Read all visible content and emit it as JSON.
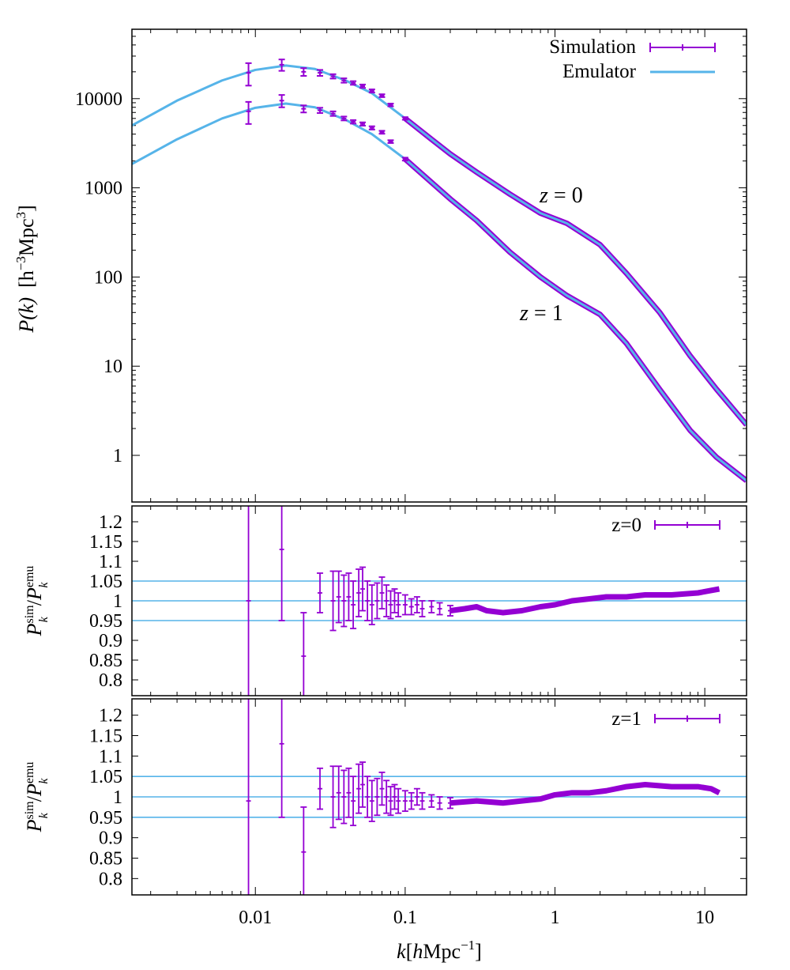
{
  "chart_data": [
    {
      "type": "line",
      "panel": "power-spectrum",
      "title": "",
      "xlabel": "k[hMpc^-1]",
      "ylabel_parts": {
        "main": "P(k)",
        "units_prefix": "[h",
        "units_exp": "−3",
        "units_mid": "Mpc",
        "units_exp2": "3",
        "units_suffix": "]"
      },
      "xscale": "log",
      "yscale": "log",
      "xlim": [
        0.0015,
        19
      ],
      "ylim": [
        0.3,
        60000
      ],
      "yticks": [
        1,
        10,
        100,
        1000,
        10000
      ],
      "ytick_labels": [
        "1",
        "10",
        "100",
        "1000",
        "10000"
      ],
      "legend": [
        {
          "label": "Simulation",
          "color": "#9400d3",
          "style": "errorbar"
        },
        {
          "label": "Emulator",
          "color": "#56b4e9",
          "style": "line"
        }
      ],
      "annotations": [
        {
          "text_parts": [
            "z",
            " = ",
            "0"
          ],
          "at_k": 1.2,
          "at_p": 650
        },
        {
          "text_parts": [
            "z",
            " = ",
            "1"
          ],
          "at_k": 0.5,
          "at_p": 32
        }
      ],
      "series": [
        {
          "name": "Emulator z=0",
          "color": "#56b4e9",
          "points": [
            [
              0.0015,
              5000
            ],
            [
              0.003,
              9500
            ],
            [
              0.006,
              16000
            ],
            [
              0.01,
              21000
            ],
            [
              0.016,
              23500
            ],
            [
              0.025,
              21500
            ],
            [
              0.04,
              16000
            ],
            [
              0.06,
              11500
            ],
            [
              0.1,
              6000
            ],
            [
              0.15,
              3500
            ],
            [
              0.2,
              2400
            ],
            [
              0.3,
              1500
            ],
            [
              0.5,
              850
            ],
            [
              0.8,
              520
            ],
            [
              1.2,
              400
            ],
            [
              2,
              230
            ],
            [
              3,
              110
            ],
            [
              5,
              40
            ],
            [
              8,
              13
            ],
            [
              12,
              5.5
            ],
            [
              19,
              2.2
            ]
          ]
        },
        {
          "name": "Emulator z=1",
          "color": "#56b4e9",
          "points": [
            [
              0.0015,
              1850
            ],
            [
              0.003,
              3500
            ],
            [
              0.006,
              6000
            ],
            [
              0.01,
              7900
            ],
            [
              0.016,
              8800
            ],
            [
              0.025,
              8000
            ],
            [
              0.04,
              5800
            ],
            [
              0.06,
              4000
            ],
            [
              0.1,
              2100
            ],
            [
              0.15,
              1150
            ],
            [
              0.2,
              750
            ],
            [
              0.3,
              430
            ],
            [
              0.5,
              190
            ],
            [
              0.8,
              100
            ],
            [
              1.2,
              62
            ],
            [
              2,
              38
            ],
            [
              3,
              18
            ],
            [
              5,
              5.5
            ],
            [
              8,
              1.9
            ],
            [
              12,
              0.95
            ],
            [
              19,
              0.52
            ]
          ]
        },
        {
          "name": "Simulation z=0",
          "color": "#9400d3",
          "points": [
            [
              0.009,
              19500,
              5500
            ],
            [
              0.015,
              24000,
              3500
            ],
            [
              0.021,
              20000,
              2000
            ],
            [
              0.027,
              19500,
              1500
            ],
            [
              0.033,
              17800,
              1000
            ],
            [
              0.039,
              16000,
              900
            ],
            [
              0.045,
              15000,
              700
            ],
            [
              0.052,
              13800,
              600
            ],
            [
              0.06,
              12200,
              500
            ],
            [
              0.07,
              10800,
              400
            ],
            [
              0.08,
              8500,
              300
            ],
            [
              0.1,
              6000,
              200
            ]
          ]
        },
        {
          "name": "Simulation z=1",
          "color": "#9400d3",
          "points": [
            [
              0.009,
              7200,
              2000
            ],
            [
              0.015,
              9500,
              1500
            ],
            [
              0.021,
              7700,
              700
            ],
            [
              0.027,
              7400,
              500
            ],
            [
              0.033,
              6800,
              400
            ],
            [
              0.039,
              6000,
              300
            ],
            [
              0.045,
              5500,
              250
            ],
            [
              0.052,
              5200,
              220
            ],
            [
              0.06,
              4700,
              200
            ],
            [
              0.07,
              4200,
              160
            ],
            [
              0.08,
              3300,
              120
            ],
            [
              0.1,
              2100,
              80
            ]
          ]
        }
      ]
    },
    {
      "type": "scatter",
      "panel": "ratio-z0",
      "legend_label": "z=0",
      "ylabel_parts": {
        "num": "P",
        "num_sup": "sim",
        "num_sub": "k",
        "den": "P",
        "den_sup": "emu",
        "den_sub": "k"
      },
      "xscale": "log",
      "xlim": [
        0.0015,
        19
      ],
      "ylim": [
        0.76,
        1.24
      ],
      "yticks": [
        0.8,
        0.85,
        0.9,
        0.95,
        1,
        1.05,
        1.1,
        1.15,
        1.2
      ],
      "ytick_labels": [
        "0.8",
        "0.85",
        "0.9",
        "0.95",
        "1",
        "1.05",
        "1.1",
        "1.15",
        "1.2"
      ],
      "hlines": [
        0.95,
        1.0,
        1.05
      ],
      "points": [
        [
          0.009,
          1.0,
          0.3
        ],
        [
          0.015,
          1.13,
          0.18
        ],
        [
          0.021,
          0.86,
          0.11
        ],
        [
          0.027,
          1.02,
          0.05
        ],
        [
          0.033,
          1.0,
          0.075
        ],
        [
          0.036,
          1.01,
          0.065
        ],
        [
          0.039,
          1.0,
          0.065
        ],
        [
          0.042,
          1.01,
          0.06
        ],
        [
          0.045,
          0.99,
          0.06
        ],
        [
          0.049,
          1.02,
          0.06
        ],
        [
          0.052,
          1.03,
          0.055
        ],
        [
          0.056,
          1.0,
          0.05
        ],
        [
          0.06,
          0.99,
          0.05
        ],
        [
          0.065,
          1.0,
          0.045
        ],
        [
          0.07,
          1.02,
          0.04
        ],
        [
          0.075,
          1.0,
          0.04
        ],
        [
          0.08,
          0.99,
          0.035
        ],
        [
          0.085,
          1.0,
          0.03
        ],
        [
          0.09,
          0.99,
          0.03
        ],
        [
          0.1,
          0.99,
          0.025
        ],
        [
          0.11,
          0.985,
          0.02
        ],
        [
          0.12,
          0.99,
          0.02
        ],
        [
          0.13,
          0.98,
          0.02
        ],
        [
          0.15,
          0.985,
          0.015
        ],
        [
          0.17,
          0.98,
          0.015
        ],
        [
          0.2,
          0.975,
          0.013
        ]
      ],
      "smooth_ratio": [
        [
          0.2,
          0.975
        ],
        [
          0.25,
          0.98
        ],
        [
          0.3,
          0.985
        ],
        [
          0.35,
          0.975
        ],
        [
          0.45,
          0.97
        ],
        [
          0.6,
          0.975
        ],
        [
          0.8,
          0.985
        ],
        [
          1.0,
          0.99
        ],
        [
          1.3,
          1.0
        ],
        [
          1.7,
          1.005
        ],
        [
          2.2,
          1.01
        ],
        [
          3.0,
          1.01
        ],
        [
          4.0,
          1.015
        ],
        [
          6.0,
          1.015
        ],
        [
          9.0,
          1.02
        ],
        [
          12.5,
          1.03
        ]
      ]
    },
    {
      "type": "scatter",
      "panel": "ratio-z1",
      "legend_label": "z=1",
      "ylabel_parts": {
        "num": "P",
        "num_sup": "sim",
        "num_sub": "k",
        "den": "P",
        "den_sup": "emu",
        "den_sub": "k"
      },
      "xscale": "log",
      "xlim": [
        0.0015,
        19
      ],
      "ylim": [
        0.76,
        1.24
      ],
      "yticks": [
        0.8,
        0.85,
        0.9,
        0.95,
        1,
        1.05,
        1.1,
        1.15,
        1.2
      ],
      "ytick_labels": [
        "0.8",
        "0.85",
        "0.9",
        "0.95",
        "1",
        "1.05",
        "1.1",
        "1.15",
        "1.2"
      ],
      "xticks": [
        0.01,
        0.1,
        1,
        10
      ],
      "xtick_labels": [
        "0.01",
        "0.1",
        "1",
        "10"
      ],
      "xlabel_parts": {
        "k": "k",
        "bracket_open": "[",
        "h": "h",
        "unit": "Mpc",
        "exp": "−1",
        "bracket_close": "]"
      },
      "hlines": [
        0.95,
        1.0,
        1.05
      ],
      "points": [
        [
          0.009,
          0.99,
          0.3
        ],
        [
          0.015,
          1.13,
          0.18
        ],
        [
          0.021,
          0.865,
          0.11
        ],
        [
          0.027,
          1.02,
          0.05
        ],
        [
          0.033,
          1.0,
          0.075
        ],
        [
          0.036,
          1.01,
          0.065
        ],
        [
          0.039,
          1.0,
          0.065
        ],
        [
          0.042,
          1.01,
          0.06
        ],
        [
          0.045,
          0.99,
          0.06
        ],
        [
          0.049,
          1.02,
          0.06
        ],
        [
          0.052,
          1.03,
          0.055
        ],
        [
          0.056,
          1.0,
          0.05
        ],
        [
          0.06,
          0.99,
          0.05
        ],
        [
          0.065,
          1.0,
          0.045
        ],
        [
          0.07,
          1.02,
          0.04
        ],
        [
          0.075,
          1.0,
          0.04
        ],
        [
          0.08,
          0.99,
          0.035
        ],
        [
          0.085,
          1.0,
          0.03
        ],
        [
          0.09,
          0.99,
          0.03
        ],
        [
          0.1,
          0.99,
          0.025
        ],
        [
          0.11,
          0.99,
          0.02
        ],
        [
          0.12,
          1.0,
          0.02
        ],
        [
          0.13,
          0.99,
          0.02
        ],
        [
          0.15,
          0.99,
          0.015
        ],
        [
          0.17,
          0.985,
          0.015
        ],
        [
          0.2,
          0.985,
          0.013
        ]
      ],
      "smooth_ratio": [
        [
          0.2,
          0.985
        ],
        [
          0.3,
          0.99
        ],
        [
          0.45,
          0.985
        ],
        [
          0.6,
          0.99
        ],
        [
          0.8,
          0.995
        ],
        [
          1.0,
          1.005
        ],
        [
          1.3,
          1.01
        ],
        [
          1.7,
          1.01
        ],
        [
          2.2,
          1.015
        ],
        [
          3.0,
          1.025
        ],
        [
          4.0,
          1.03
        ],
        [
          6.0,
          1.025
        ],
        [
          9.0,
          1.025
        ],
        [
          11.0,
          1.02
        ],
        [
          12.5,
          1.01
        ]
      ]
    }
  ]
}
